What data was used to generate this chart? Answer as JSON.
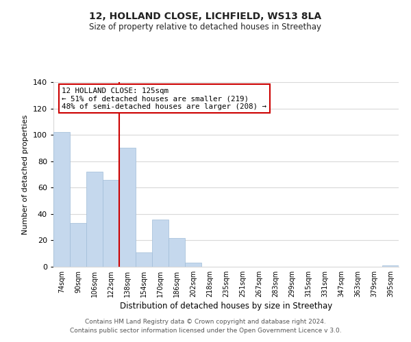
{
  "title_line1": "12, HOLLAND CLOSE, LICHFIELD, WS13 8LA",
  "title_line2": "Size of property relative to detached houses in Streethay",
  "xlabel": "Distribution of detached houses by size in Streethay",
  "ylabel": "Number of detached properties",
  "bar_labels": [
    "74sqm",
    "90sqm",
    "106sqm",
    "122sqm",
    "138sqm",
    "154sqm",
    "170sqm",
    "186sqm",
    "202sqm",
    "218sqm",
    "235sqm",
    "251sqm",
    "267sqm",
    "283sqm",
    "299sqm",
    "315sqm",
    "331sqm",
    "347sqm",
    "363sqm",
    "379sqm",
    "395sqm"
  ],
  "bar_values": [
    102,
    33,
    72,
    66,
    90,
    11,
    36,
    22,
    3,
    0,
    0,
    0,
    0,
    0,
    0,
    0,
    0,
    0,
    0,
    0,
    1
  ],
  "bar_color": "#c5d8ed",
  "bar_edge_color": "#a0bcd8",
  "vline_color": "#cc0000",
  "annotation_title": "12 HOLLAND CLOSE: 125sqm",
  "annotation_line1": "← 51% of detached houses are smaller (219)",
  "annotation_line2": "48% of semi-detached houses are larger (208) →",
  "annotation_box_color": "#ffffff",
  "annotation_box_edge": "#cc0000",
  "ylim": [
    0,
    140
  ],
  "yticks": [
    0,
    20,
    40,
    60,
    80,
    100,
    120,
    140
  ],
  "footer_line1": "Contains HM Land Registry data © Crown copyright and database right 2024.",
  "footer_line2": "Contains public sector information licensed under the Open Government Licence v 3.0.",
  "bg_color": "#ffffff",
  "grid_color": "#d8d8d8"
}
